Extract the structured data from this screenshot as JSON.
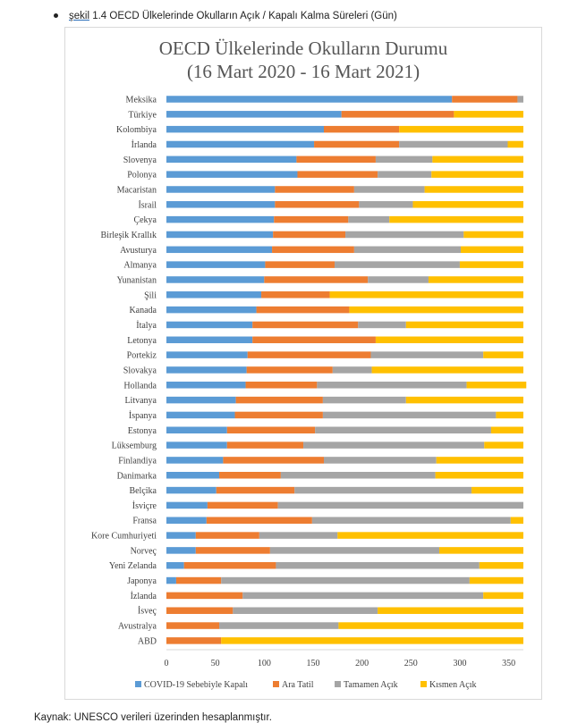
{
  "caption": {
    "prefix": "şekil",
    "text": " 1.4 OECD Ülkelerinde Okulların Açık / Kapalı Kalma Süreleri (Gün)"
  },
  "source": "Kaynak: UNESCO verileri üzerinden hesaplanmıştır.",
  "colors": {
    "covid": "#5b9bd5",
    "ara_tatil": "#ed7d31",
    "tamamen_acik": "#a5a5a5",
    "kismen_acik": "#ffc000",
    "axis": "#d9d9d9",
    "label": "#404040"
  },
  "chart_data": {
    "type": "bar",
    "orientation": "horizontal",
    "stacked": true,
    "title": "OECD Ülkelerinde Okulların Durumu",
    "subtitle": "(16 Mart 2020 - 16 Mart 2021)",
    "xlabel": "",
    "ylabel": "",
    "xlim": [
      0,
      365
    ],
    "xticks": [
      0,
      50,
      100,
      150,
      200,
      250,
      300,
      350
    ],
    "grid": false,
    "legend_position": "bottom",
    "categories": [
      "Meksika",
      "Türkiye",
      "Kolombiya",
      "İrlanda",
      "Slovenya",
      "Polonya",
      "Macaristan",
      "İsrail",
      "Çekya",
      "Birleşik Krallık",
      "Avusturya",
      "Almanya",
      "Yunanistan",
      "Şili",
      "Kanada",
      "İtalya",
      "Letonya",
      "Portekiz",
      "Slovakya",
      "Hollanda",
      "Litvanya",
      "İspanya",
      "Estonya",
      "Lüksemburg",
      "Finlandiya",
      "Danimarka",
      "Belçika",
      "İsviçre",
      "Fransa",
      "Kore Cumhuriyeti",
      "Norveç",
      "Yeni Zelanda",
      "Japonya",
      "İzlanda",
      "İsveç",
      "Avustralya",
      "ABD"
    ],
    "series": [
      {
        "name": "COVID-19 Sebebiyle Kapalı",
        "values": [
          292,
          179,
          161,
          151,
          133,
          134,
          111,
          111,
          110,
          109,
          108,
          101,
          100,
          97,
          92,
          88,
          88,
          83,
          82,
          81,
          71,
          70,
          62,
          62,
          58,
          54,
          51,
          42,
          41,
          30,
          30,
          18,
          10,
          0,
          0,
          0,
          0
        ]
      },
      {
        "name": "Ara Tatil",
        "values": [
          67,
          115,
          77,
          87,
          81,
          82,
          81,
          86,
          76,
          74,
          84,
          71,
          106,
          70,
          95,
          108,
          126,
          126,
          88,
          73,
          89,
          90,
          90,
          78,
          103,
          63,
          80,
          72,
          108,
          65,
          76,
          94,
          46,
          78,
          68,
          54,
          56
        ]
      },
      {
        "name": "Tamamen Açık",
        "values": [
          6,
          0,
          0,
          111,
          58,
          55,
          72,
          55,
          42,
          121,
          109,
          128,
          62,
          0,
          0,
          49,
          0,
          115,
          40,
          153,
          85,
          177,
          180,
          185,
          115,
          158,
          181,
          251,
          203,
          80,
          173,
          208,
          254,
          246,
          148,
          122,
          0
        ]
      },
      {
        "name": "Kısmen Açık",
        "values": [
          0,
          71,
          127,
          16,
          93,
          94,
          101,
          113,
          137,
          61,
          64,
          65,
          97,
          198,
          178,
          120,
          151,
          41,
          155,
          61,
          120,
          28,
          33,
          40,
          89,
          90,
          53,
          0,
          13,
          190,
          86,
          45,
          55,
          41,
          149,
          189,
          309
        ]
      }
    ]
  }
}
